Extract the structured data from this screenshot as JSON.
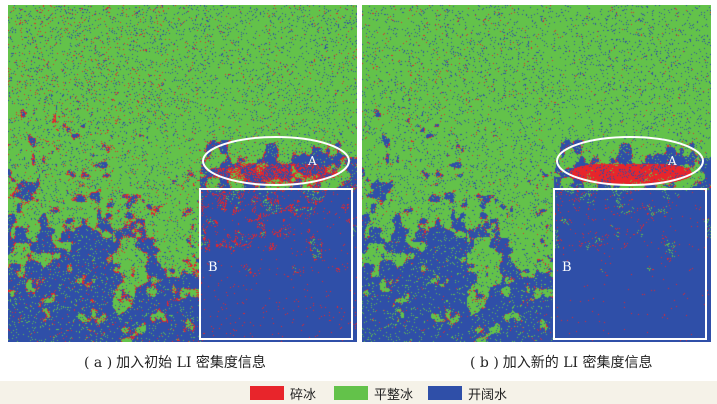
{
  "colors": {
    "broken_ice": "#e8252b",
    "flat_ice": "#63c24a",
    "open_water": "#2f4fa8",
    "marker": "#ffffff",
    "legend_bg": "#f5f2e8"
  },
  "panels": [
    {
      "id": "a",
      "caption_tag": "( a )",
      "caption_text": "加入初始 LI 密集度信息",
      "region_a_label": "A",
      "region_b_label": "B"
    },
    {
      "id": "b",
      "caption_tag": "( b )",
      "caption_text": "加入新的 LI 密集度信息",
      "region_a_label": "A",
      "region_b_label": "B"
    }
  ],
  "legend": [
    {
      "label": "碎冰",
      "color": "#e8252b"
    },
    {
      "label": "平整冰",
      "color": "#63c24a"
    },
    {
      "label": "开阔水",
      "color": "#2f4fa8"
    }
  ]
}
